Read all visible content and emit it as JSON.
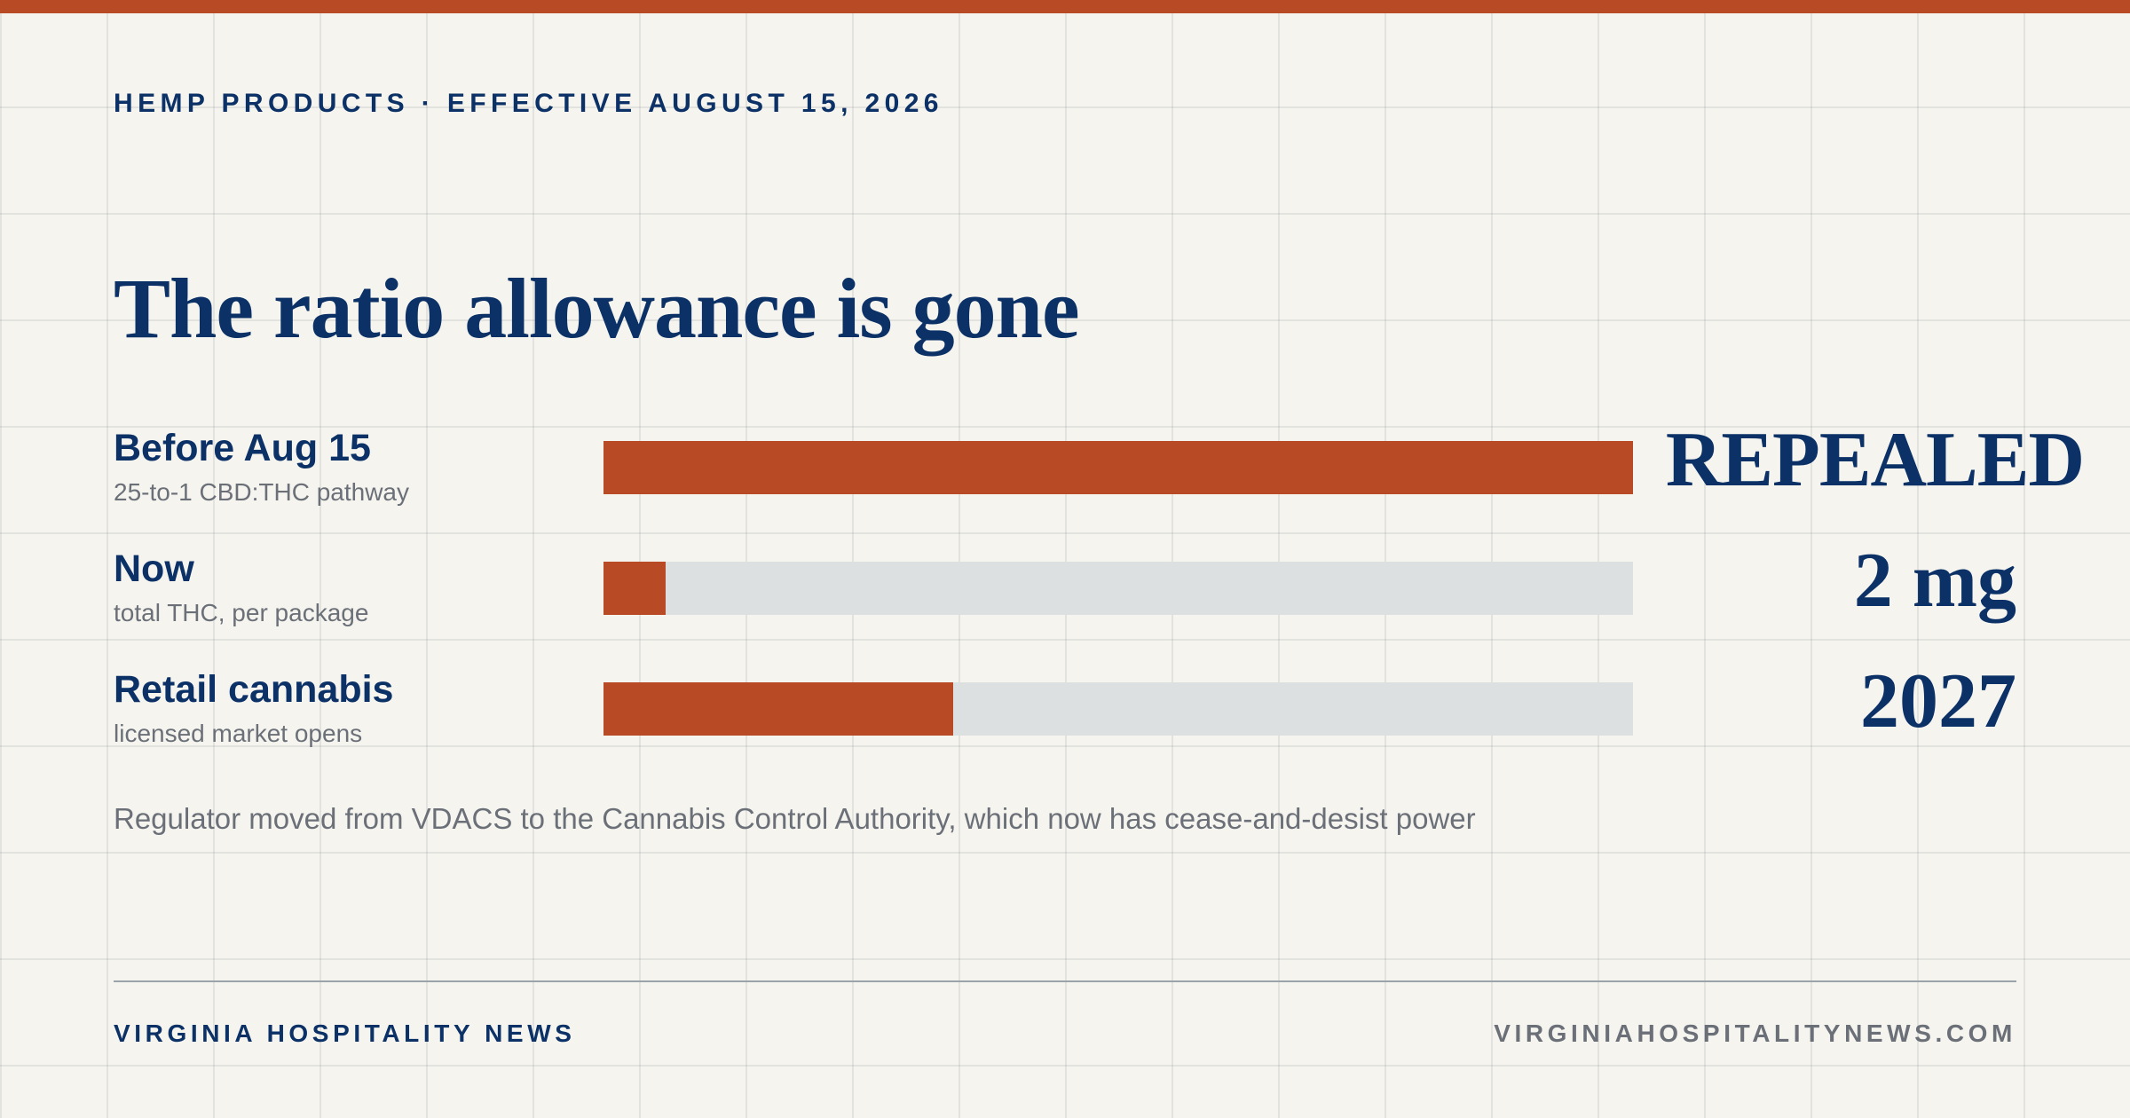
{
  "theme": {
    "accent": "#b84a26",
    "navy": "#0b3166",
    "muted": "#6b7078",
    "track": "#dde0e0",
    "background": "#f5f4ef"
  },
  "kicker": "HEMP PRODUCTS · EFFECTIVE AUGUST 15, 2026",
  "headline": "The ratio allowance is gone",
  "rows": [
    {
      "label": "Before Aug 15",
      "sublabel": "25-to-1 CBD:THC pathway",
      "value": "REPEALED",
      "fill_fraction": 1.0
    },
    {
      "label": "Now",
      "sublabel": "total THC, per package",
      "value": "2 mg",
      "fill_fraction": 0.06
    },
    {
      "label": "Retail cannabis",
      "sublabel": "licensed market opens",
      "value": "2027",
      "fill_fraction": 0.34
    }
  ],
  "footnote": "Regulator moved from VDACS to the Cannabis Control Authority, which now has cease-and-desist power",
  "footer": {
    "brand": "VIRGINIA HOSPITALITY NEWS",
    "site": "VIRGINIAHOSPITALITYNEWS.COM"
  }
}
